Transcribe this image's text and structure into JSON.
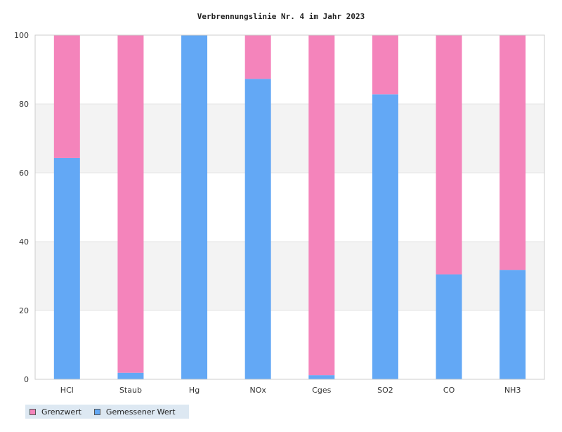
{
  "chart_data": {
    "type": "bar",
    "stacked": true,
    "title": "Verbrennungslinie Nr. 4 im Jahr 2023",
    "categories": [
      "HCl",
      "Staub",
      "Hg",
      "NOx",
      "Cges",
      "SO2",
      "CO",
      "NH3"
    ],
    "series": [
      {
        "name": "Gemessener Wert",
        "color": "#63a8f5",
        "values": [
          64.3,
          1.9,
          100,
          87.3,
          1.2,
          82.8,
          30.5,
          31.8
        ]
      },
      {
        "name": "Grenzwert",
        "color": "#f484bb",
        "values": [
          35.7,
          98.1,
          0,
          12.7,
          98.8,
          17.2,
          69.5,
          68.2
        ]
      }
    ],
    "ylim": [
      0,
      100
    ],
    "yticks": [
      0,
      20,
      40,
      60,
      80,
      100
    ],
    "grid": "horizontal bands",
    "legend": "bottom-left"
  },
  "legend": {
    "items": [
      {
        "label": "Grenzwert",
        "color": "#f484bb"
      },
      {
        "label": "Gemessener Wert",
        "color": "#63a8f5"
      }
    ]
  }
}
